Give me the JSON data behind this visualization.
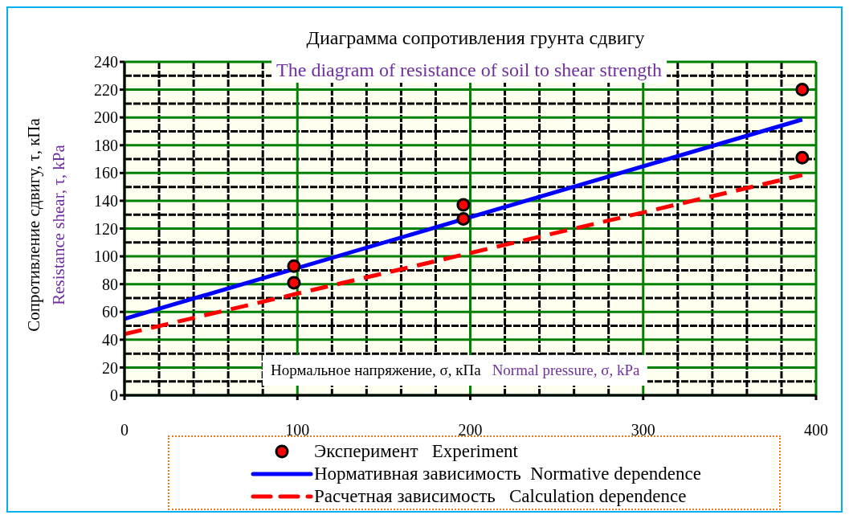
{
  "chart_data": {
    "type": "line",
    "title": "Диаграмма сопротивления грунта сдвигу",
    "subtitle": "The diagram of resistance of soil to shear strength",
    "xlabel": "Нормальное напряжение, σ, кПа",
    "ylabel": "Сопротивление сдвигу, τ, кПа",
    "annotations": [
      "Normal pressure, σ, kPa",
      "Resistance shear, τ, kPa"
    ],
    "xlim": [
      0,
      400
    ],
    "xticks": [
      0,
      100,
      200,
      300,
      400
    ],
    "ylim": [
      0,
      240
    ],
    "yticks": [
      0,
      20,
      40,
      60,
      80,
      100,
      120,
      140,
      160,
      180,
      200,
      220,
      240
    ],
    "grid": true,
    "legend": "bottom",
    "series": [
      {
        "name": "Эксперимент   Experiment",
        "type": "scatter",
        "color": "#ff0000",
        "marker": "circle",
        "x": [
          98,
          98,
          196,
          196,
          392,
          392
        ],
        "values": [
          93,
          81,
          137,
          127,
          220,
          171
        ]
      },
      {
        "name": "Нормативная зависимость  Normative dependence",
        "type": "line",
        "color": "#0000ff",
        "line_style": "solid",
        "x": [
          0,
          392
        ],
        "values": [
          55,
          198.5
        ]
      },
      {
        "name": "Расчетная зависимость   Calculation dependence",
        "type": "line",
        "color": "#ff0000",
        "line_style": "dashed",
        "x": [
          0,
          392
        ],
        "values": [
          44,
          158.5
        ]
      }
    ]
  }
}
